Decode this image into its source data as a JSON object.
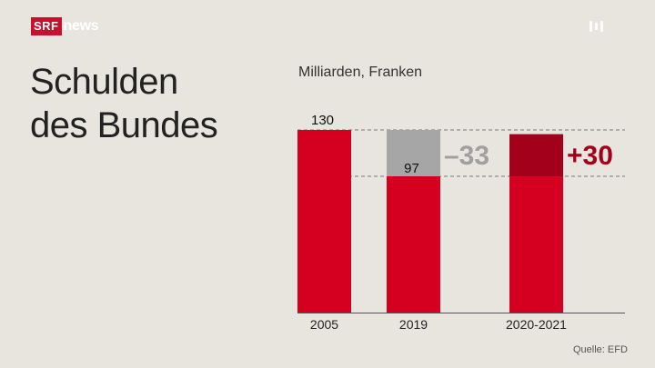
{
  "brand": {
    "srf": "SRF",
    "news": "news"
  },
  "title_line1": "Schulden",
  "title_line2": "des Bundes",
  "unit_label": "Milliarden, Franken",
  "source": "Quelle: EFD",
  "colors": {
    "bar": "#d5001f",
    "reduction": "#a6a6a6",
    "increase": "#a3001c",
    "background": "#e8e5de"
  },
  "chart_data": {
    "type": "bar",
    "categories": [
      "2005",
      "2019",
      "2020-2021"
    ],
    "values": [
      130,
      97,
      127
    ],
    "segments": [
      {
        "category": "2005",
        "base": 130,
        "delta": 0,
        "label": "130"
      },
      {
        "category": "2019",
        "base": 97,
        "delta": -33,
        "label": "97",
        "delta_label": "–33"
      },
      {
        "category": "2020-2021",
        "base": 97,
        "delta": 30,
        "delta_label": "+30"
      }
    ],
    "ylabel": "Milliarden, Franken",
    "ylim": [
      0,
      130
    ],
    "reference_lines": [
      130,
      97
    ],
    "source": "Quelle: EFD"
  }
}
